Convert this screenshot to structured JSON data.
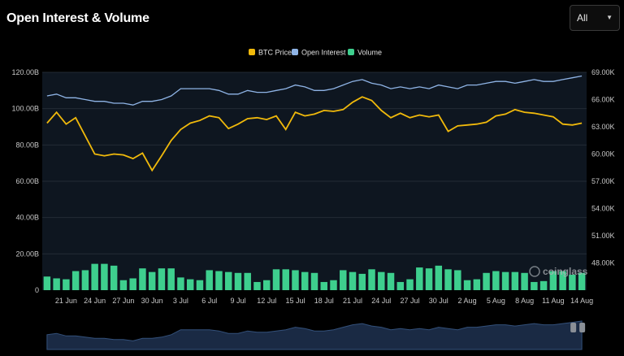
{
  "header": {
    "title": "Open Interest & Volume",
    "range_select": "All"
  },
  "colors": {
    "btc_price": "#f0b90b",
    "open_interest": "#8fb4e6",
    "volume": "#3ecf8e",
    "plot_bg": "#0e1620",
    "grid": "#232b35"
  },
  "watermark": "coinglass",
  "chart_data": {
    "type": "line",
    "title": "Open Interest & Volume",
    "legend_position": "top-center",
    "grid": true,
    "x": [
      "19 Jun",
      "20 Jun",
      "21 Jun",
      "22 Jun",
      "23 Jun",
      "24 Jun",
      "25 Jun",
      "26 Jun",
      "27 Jun",
      "28 Jun",
      "29 Jun",
      "30 Jun",
      "1 Jul",
      "2 Jul",
      "3 Jul",
      "4 Jul",
      "5 Jul",
      "6 Jul",
      "7 Jul",
      "8 Jul",
      "9 Jul",
      "10 Jul",
      "11 Jul",
      "12 Jul",
      "13 Jul",
      "14 Jul",
      "15 Jul",
      "16 Jul",
      "17 Jul",
      "18 Jul",
      "19 Jul",
      "20 Jul",
      "21 Jul",
      "22 Jul",
      "23 Jul",
      "24 Jul",
      "25 Jul",
      "26 Jul",
      "27 Jul",
      "28 Jul",
      "29 Jul",
      "30 Jul",
      "31 Jul",
      "1 Aug",
      "2 Aug",
      "3 Aug",
      "4 Aug",
      "5 Aug",
      "6 Aug",
      "7 Aug",
      "8 Aug",
      "9 Aug",
      "10 Aug",
      "11 Aug",
      "12 Aug",
      "13 Aug",
      "14 Aug"
    ],
    "x_tick_labels": [
      "21 Jun",
      "24 Jun",
      "27 Jun",
      "30 Jun",
      "3 Jul",
      "6 Jul",
      "9 Jul",
      "12 Jul",
      "15 Jul",
      "18 Jul",
      "21 Jul",
      "24 Jul",
      "27 Jul",
      "30 Jul",
      "2 Aug",
      "5 Aug",
      "8 Aug",
      "11 Aug",
      "14 Aug"
    ],
    "left_axis": {
      "ticks": [
        "0",
        "20.00B",
        "40.00B",
        "60.00B",
        "80.00B",
        "100.00B",
        "120.00B"
      ],
      "ylim": [
        0,
        120
      ]
    },
    "right_axis": {
      "ticks": [
        "48.00K",
        "51.00K",
        "54.00K",
        "57.00K",
        "60.00K",
        "63.00K",
        "66.00K",
        "69.00K"
      ],
      "ylim": [
        45000,
        69000
      ]
    },
    "series": [
      {
        "name": "BTC Price",
        "axis": "right",
        "type": "line",
        "values": [
          63400,
          64600,
          63300,
          64000,
          62000,
          60000,
          59800,
          60000,
          59900,
          59500,
          60100,
          58200,
          59800,
          61500,
          62700,
          63400,
          63700,
          64200,
          64000,
          62800,
          63300,
          63900,
          64000,
          63800,
          64200,
          62700,
          64600,
          64200,
          64400,
          64800,
          64700,
          64900,
          65700,
          66300,
          65900,
          64800,
          64000,
          64500,
          64000,
          64300,
          64100,
          64300,
          62500,
          63100,
          63200,
          63300,
          63500,
          64200,
          64400,
          64900,
          64600,
          64500,
          64300,
          64100,
          63300,
          63200,
          63400
        ]
      },
      {
        "name": "Open Interest",
        "axis": "left",
        "type": "line",
        "values": [
          107,
          108,
          106,
          106,
          105,
          104,
          104,
          103,
          103,
          102,
          104,
          104,
          105,
          107,
          111,
          111,
          111,
          111,
          110,
          108,
          108,
          110,
          109,
          109,
          110,
          111,
          113,
          112,
          110,
          110,
          111,
          113,
          115,
          116,
          114,
          113,
          111,
          112,
          111,
          112,
          111,
          113,
          112,
          111,
          113,
          113,
          114,
          115,
          115,
          114,
          115,
          116,
          115,
          115,
          116,
          117,
          118
        ]
      },
      {
        "name": "Volume",
        "axis": "left",
        "type": "bar",
        "values": [
          7.5,
          6.5,
          6.0,
          10.5,
          11.0,
          14.5,
          14.5,
          13.5,
          5.5,
          6.5,
          12.0,
          10.0,
          12.0,
          12.0,
          7.0,
          6.0,
          5.5,
          11.0,
          10.5,
          10.0,
          9.5,
          9.5,
          4.5,
          5.5,
          11.5,
          11.5,
          11.0,
          10.0,
          9.5,
          4.5,
          5.5,
          11.0,
          10.0,
          9.0,
          11.5,
          10.0,
          9.5,
          4.5,
          6.0,
          12.5,
          12.0,
          13.5,
          11.5,
          11.0,
          5.5,
          6.0,
          9.5,
          10.5,
          10.0,
          10.0,
          9.5,
          4.5,
          5.0,
          10.5,
          10.5,
          8.5,
          9.5
        ]
      }
    ]
  }
}
